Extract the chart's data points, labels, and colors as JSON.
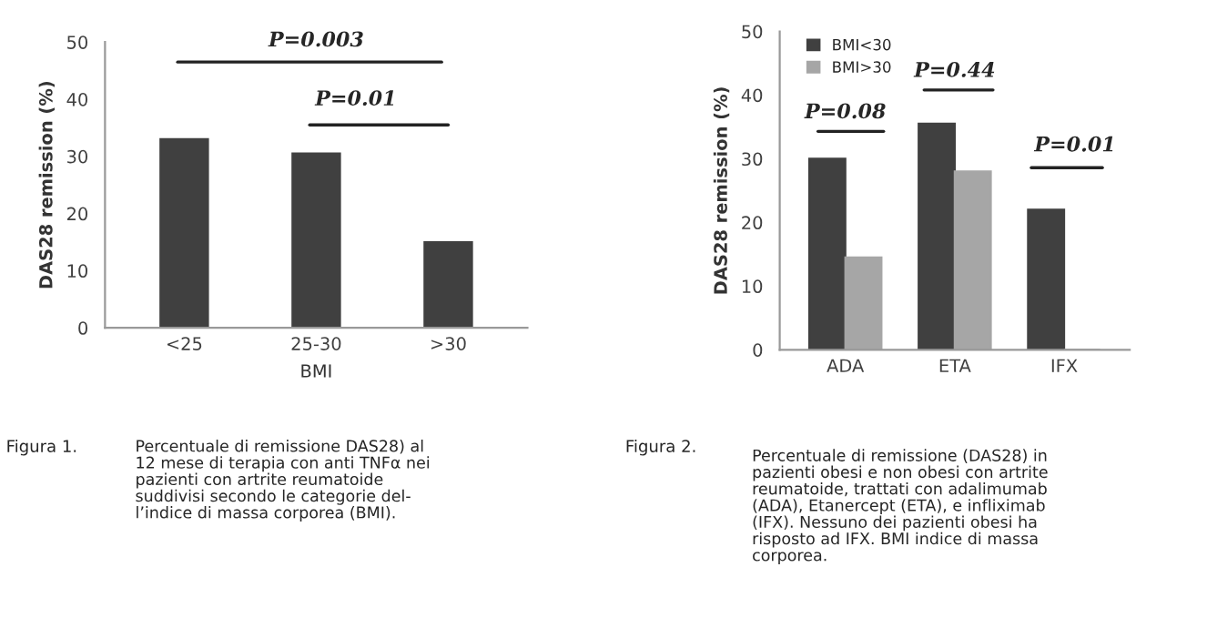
{
  "chart_data": [
    {
      "type": "bar",
      "xlabel": "BMI",
      "ylabel": "DAS28 remission (%)",
      "categories": [
        "<25",
        "25-30",
        ">30"
      ],
      "series": [
        {
          "color": "#404040",
          "values": [
            33,
            30.5,
            15
          ]
        }
      ],
      "ylim": [
        0,
        50
      ],
      "yticks": [
        0,
        10,
        20,
        30,
        40,
        50
      ],
      "grid": false,
      "legend": false,
      "annotations": [
        "P=0.003",
        "P=0.01",
        "Figura 1.",
        "Percentuale di remissione DAS28) al\n12 mese di terapia con anti TNFα nei\npazienti con artrite reumatoide\nsuddivisi secondo le categorie del-\nl’indice di massa corporea (BMI)."
      ]
    },
    {
      "type": "bar",
      "ylabel": "DAS28 remission (%)",
      "categories": [
        "ADA",
        "ETA",
        "IFX"
      ],
      "series": [
        {
          "name": "BMI<30",
          "color": "#404040",
          "values": [
            30,
            35.5,
            22
          ]
        },
        {
          "name": "BMI>30",
          "color": "#a6a6a6",
          "values": [
            14.5,
            28,
            0
          ]
        }
      ],
      "ylim": [
        0,
        50
      ],
      "yticks": [
        0,
        10,
        20,
        30,
        40,
        50
      ],
      "grid": false,
      "legend": "top left",
      "annotations": [
        "P=0.08",
        "P=0.44",
        "P=0.01",
        "Figura 2.",
        "Percentuale di remissione (DAS28) in\npazienti obesi e non obesi con artrite\nreumatoide, trattati con adalimumab\n(ADA), Etanercept (ETA), e infliximab\n(IFX). Nessuno dei pazienti obesi ha\nrisposto ad IFX. BMI indice di massa\ncorporea."
      ]
    }
  ]
}
